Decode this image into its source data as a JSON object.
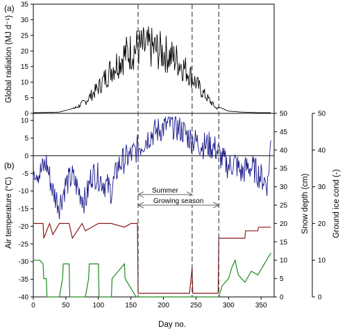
{
  "chart_data": {
    "type": "line",
    "panel_labels": [
      "(a)",
      "(b)"
    ],
    "xlabel": "Day no.",
    "xlim": [
      0,
      370
    ],
    "xticks": [
      0,
      50,
      100,
      150,
      200,
      250,
      300,
      350
    ],
    "vlines": [
      161,
      244,
      285
    ],
    "annotations": [
      {
        "text": "Summer",
        "from": 161,
        "to": 244
      },
      {
        "text": "Growing season",
        "from": 161,
        "to": 285
      }
    ],
    "top_panel": {
      "ylabel": "Global radiation (MJ d⁻¹)",
      "ylim": [
        0,
        35
      ],
      "yticks": [
        0,
        5,
        10,
        15,
        20,
        25,
        30,
        35
      ],
      "series": [
        {
          "color": "#000000",
          "envelope_x": [
            0,
            40,
            60,
            80,
            100,
            120,
            140,
            160,
            180,
            200,
            220,
            240,
            260,
            280,
            300,
            320,
            350,
            365
          ],
          "envelope_y": [
            0.2,
            0.4,
            1.5,
            5,
            11,
            19,
            25,
            28,
            28,
            26,
            23,
            17,
            9,
            2.5,
            0.7,
            0.4,
            0.2,
            0.2
          ]
        }
      ]
    },
    "bottom_panel": {
      "ylabel_left": "Air temperature (°C)",
      "ylim_left": [
        -40,
        12
      ],
      "yticks_left": [
        -40,
        -35,
        -30,
        -25,
        -20,
        -15,
        -10,
        -5,
        0,
        5,
        10
      ],
      "ylabel_right1": "Snow depth (cm)",
      "ylim_right1": [
        0,
        50
      ],
      "yticks_right1": [
        0,
        5,
        10,
        15,
        20,
        25,
        30,
        35,
        40,
        45,
        50
      ],
      "ylabel_right2": "Ground ice cond (-)",
      "ylim_right2": [
        0,
        50
      ],
      "yticks_right2": [
        0,
        10,
        20,
        30,
        40,
        50
      ],
      "series": [
        {
          "axis": "left",
          "color": "#1a1a8c",
          "x": [
            0,
            10,
            20,
            30,
            40,
            50,
            60,
            70,
            80,
            90,
            100,
            110,
            120,
            130,
            140,
            150,
            160,
            170,
            180,
            190,
            200,
            210,
            220,
            230,
            240,
            250,
            260,
            270,
            280,
            290,
            300,
            310,
            320,
            330,
            340,
            350,
            360,
            365
          ],
          "y": [
            -3,
            -5,
            -2,
            -10,
            -14,
            -8,
            -6,
            -10,
            -13,
            -5,
            -6,
            -8,
            -10,
            -3,
            -1,
            0,
            2,
            4,
            6,
            7,
            8,
            9,
            8,
            7,
            5,
            4,
            3,
            3,
            2,
            -1,
            -3,
            -2,
            -5,
            -3,
            -4,
            -6,
            -8,
            4
          ]
        },
        {
          "axis": "right2",
          "color": "#8b1a1a",
          "x": [
            0,
            15,
            16,
            25,
            30,
            40,
            55,
            60,
            75,
            80,
            100,
            120,
            140,
            150,
            160,
            161,
            240,
            244,
            245,
            284,
            285,
            325,
            326,
            345,
            346,
            365
          ],
          "y": [
            20,
            20,
            16,
            20,
            17,
            20,
            20,
            16,
            20,
            18,
            20,
            20,
            19,
            20,
            20,
            1,
            1,
            8,
            1,
            1,
            16,
            16,
            18,
            18,
            19,
            19
          ]
        },
        {
          "axis": "right1",
          "color": "#1f8a1f",
          "x": [
            0,
            10,
            15,
            16,
            20,
            21,
            40,
            45,
            46,
            55,
            56,
            80,
            85,
            86,
            100,
            101,
            120,
            121,
            140,
            141,
            158,
            160,
            161,
            285,
            290,
            300,
            305,
            310,
            315,
            325,
            335,
            345,
            355,
            365
          ],
          "y": [
            10,
            10,
            9,
            5,
            5,
            0,
            0,
            5,
            9,
            9,
            0,
            0,
            5,
            9,
            9,
            0,
            0,
            5,
            9,
            5,
            0,
            0,
            0,
            0,
            3,
            5,
            8,
            10,
            6,
            4,
            7,
            6,
            9,
            12
          ]
        }
      ]
    }
  }
}
